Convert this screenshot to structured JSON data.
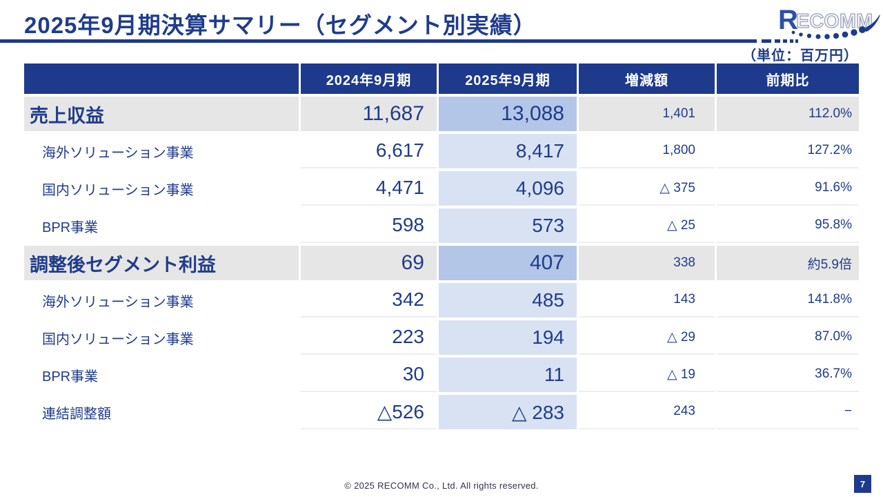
{
  "slide": {
    "title": "2025年9月期決算サマリー（セグメント別実績）",
    "unit_label": "（単位：百万円）",
    "footer": "© 2025 RECOMM Co., Ltd. All rights reserved.",
    "page_number": "7"
  },
  "logo": {
    "name": "RECOMM",
    "letter_first": "R",
    "letters_rest": "ECOMM",
    "brand_blue": "#2b50a8",
    "navy": "#1e3a8d"
  },
  "colors": {
    "navy": "#1e3a8d",
    "text_navy": "#1f3c8c",
    "row_gray": "#e7e6e6",
    "highlight_main": "#b3c6e7",
    "highlight_sub": "#d9e2f3"
  },
  "table": {
    "columns": [
      "",
      "2024年9月期",
      "2025年9月期",
      "増減額",
      "前期比"
    ],
    "rows": [
      {
        "type": "main",
        "label": "売上収益",
        "v2024": "11,687",
        "v2025": "13,088",
        "diff": "1,401",
        "ratio": "112.0%"
      },
      {
        "type": "sub",
        "label": "海外ソリューション事業",
        "v2024": "6,617",
        "v2025": "8,417",
        "diff": "1,800",
        "ratio": "127.2%"
      },
      {
        "type": "sub",
        "label": "国内ソリューション事業",
        "v2024": "4,471",
        "v2025": "4,096",
        "diff": "△ 375",
        "ratio": "91.6%"
      },
      {
        "type": "sub",
        "label": "BPR事業",
        "v2024": "598",
        "v2025": "573",
        "diff": "△ 25",
        "ratio": "95.8%"
      },
      {
        "type": "main",
        "label": "調整後セグメント利益",
        "v2024": "69",
        "v2025": "407",
        "diff": "338",
        "ratio": "約5.9倍"
      },
      {
        "type": "sub",
        "label": "海外ソリューション事業",
        "v2024": "342",
        "v2025": "485",
        "diff": "143",
        "ratio": "141.8%"
      },
      {
        "type": "sub",
        "label": "国内ソリューション事業",
        "v2024": "223",
        "v2025": "194",
        "diff": "△ 29",
        "ratio": "87.0%"
      },
      {
        "type": "sub",
        "label": "BPR事業",
        "v2024": "30",
        "v2025": "11",
        "diff": "△ 19",
        "ratio": "36.7%"
      },
      {
        "type": "sub",
        "label": "連結調整額",
        "v2024": "△526",
        "v2025": "△ 283",
        "diff": "243",
        "ratio": "−"
      }
    ]
  }
}
